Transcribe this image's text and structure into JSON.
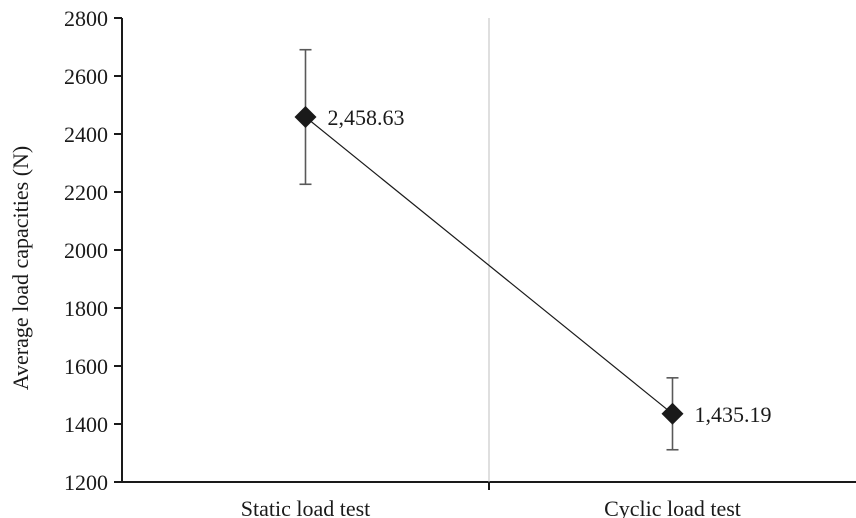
{
  "chart_data": {
    "type": "line",
    "categories": [
      "Static load test",
      "Cyclic load test"
    ],
    "series": [
      {
        "values": [
          2458.63,
          1435.19
        ],
        "error": [
          232,
          124
        ],
        "data_labels": [
          "2,458.63",
          "1,435.19"
        ],
        "marker": "diamond",
        "color": "#1a1a1a"
      }
    ],
    "ylabel": "Average load capacities (N)",
    "xlabel": "",
    "ylim": [
      1200,
      2800
    ],
    "yticks": [
      1200,
      1400,
      1600,
      1800,
      2000,
      2200,
      2400,
      2600,
      2800
    ],
    "ytick_labels": [
      "1200",
      "1400",
      "1600",
      "1800",
      "2000",
      "2200",
      "2400",
      "2600",
      "2800"
    ],
    "grid": false,
    "category_separator_color": "#bfbfbf",
    "axis_color": "#1a1a1a"
  }
}
